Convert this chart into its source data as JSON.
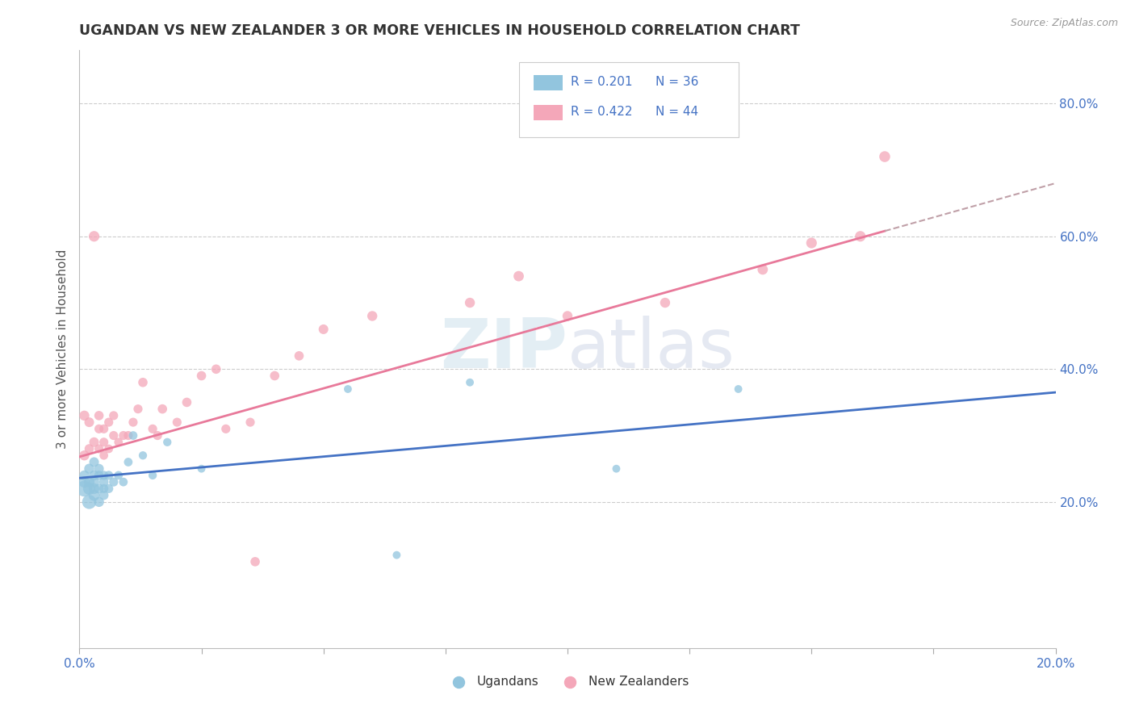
{
  "title": "UGANDAN VS NEW ZEALANDER 3 OR MORE VEHICLES IN HOUSEHOLD CORRELATION CHART",
  "source": "Source: ZipAtlas.com",
  "ylabel": "3 or more Vehicles in Household",
  "xlim": [
    0.0,
    0.2
  ],
  "ylim": [
    -0.02,
    0.88
  ],
  "xticks": [
    0.0,
    0.025,
    0.05,
    0.075,
    0.1,
    0.125,
    0.15,
    0.175,
    0.2
  ],
  "xticklabels": [
    "0.0%",
    "",
    "",
    "",
    "",
    "",
    "",
    "",
    "20.0%"
  ],
  "yticks_right": [
    0.2,
    0.4,
    0.6,
    0.8
  ],
  "yticklabels_right": [
    "20.0%",
    "40.0%",
    "60.0%",
    "80.0%"
  ],
  "color_ugandan": "#92C5DE",
  "color_nz": "#F4A7B9",
  "color_trend_ugandan": "#4472C4",
  "color_trend_nz": "#E8799A",
  "color_trend_ext": "#C0A0A8",
  "watermark_zip": "ZIP",
  "watermark_atlas": "atlas",
  "ugandan_x": [
    0.001,
    0.001,
    0.001,
    0.002,
    0.002,
    0.002,
    0.002,
    0.003,
    0.003,
    0.003,
    0.003,
    0.003,
    0.004,
    0.004,
    0.004,
    0.004,
    0.005,
    0.005,
    0.005,
    0.005,
    0.006,
    0.006,
    0.007,
    0.008,
    0.009,
    0.01,
    0.011,
    0.013,
    0.015,
    0.018,
    0.025,
    0.055,
    0.065,
    0.08,
    0.11,
    0.135
  ],
  "ugandan_y": [
    0.22,
    0.23,
    0.24,
    0.2,
    0.22,
    0.23,
    0.25,
    0.21,
    0.22,
    0.23,
    0.24,
    0.26,
    0.2,
    0.22,
    0.24,
    0.25,
    0.21,
    0.22,
    0.23,
    0.24,
    0.22,
    0.24,
    0.23,
    0.24,
    0.23,
    0.26,
    0.3,
    0.27,
    0.24,
    0.29,
    0.25,
    0.37,
    0.12,
    0.38,
    0.25,
    0.37
  ],
  "ugandan_sizes": [
    200,
    100,
    80,
    160,
    120,
    90,
    80,
    100,
    90,
    85,
    80,
    75,
    80,
    75,
    70,
    75,
    70,
    65,
    70,
    65,
    65,
    65,
    65,
    60,
    60,
    60,
    60,
    55,
    55,
    55,
    50,
    50,
    50,
    50,
    50,
    50
  ],
  "nz_x": [
    0.001,
    0.001,
    0.002,
    0.002,
    0.003,
    0.003,
    0.004,
    0.004,
    0.004,
    0.005,
    0.005,
    0.005,
    0.006,
    0.006,
    0.007,
    0.007,
    0.008,
    0.009,
    0.01,
    0.011,
    0.012,
    0.013,
    0.015,
    0.016,
    0.017,
    0.02,
    0.022,
    0.025,
    0.03,
    0.035,
    0.04,
    0.05,
    0.06,
    0.08,
    0.09,
    0.1,
    0.12,
    0.14,
    0.15,
    0.16,
    0.165,
    0.028,
    0.036,
    0.045
  ],
  "nz_y": [
    0.27,
    0.33,
    0.28,
    0.32,
    0.29,
    0.6,
    0.28,
    0.31,
    0.33,
    0.27,
    0.29,
    0.31,
    0.28,
    0.32,
    0.3,
    0.33,
    0.29,
    0.3,
    0.3,
    0.32,
    0.34,
    0.38,
    0.31,
    0.3,
    0.34,
    0.32,
    0.35,
    0.39,
    0.31,
    0.32,
    0.39,
    0.46,
    0.48,
    0.5,
    0.54,
    0.48,
    0.5,
    0.55,
    0.59,
    0.6,
    0.72,
    0.4,
    0.11,
    0.42
  ],
  "nz_sizes": [
    80,
    80,
    70,
    75,
    75,
    90,
    65,
    65,
    70,
    60,
    65,
    65,
    60,
    65,
    65,
    65,
    60,
    65,
    65,
    65,
    65,
    70,
    65,
    65,
    70,
    65,
    70,
    70,
    65,
    65,
    70,
    75,
    80,
    80,
    85,
    80,
    80,
    85,
    90,
    90,
    95,
    70,
    70,
    70
  ],
  "trend_ug_x0": 0.0,
  "trend_ug_y0": 0.236,
  "trend_ug_x1": 0.2,
  "trend_ug_y1": 0.365,
  "trend_nz_x0": 0.0,
  "trend_nz_y0": 0.268,
  "trend_nz_x1": 0.165,
  "trend_nz_y1": 0.608,
  "trend_ext_x0": 0.165,
  "trend_ext_y0": 0.608,
  "trend_ext_x1": 0.2,
  "trend_ext_y1": 0.68
}
